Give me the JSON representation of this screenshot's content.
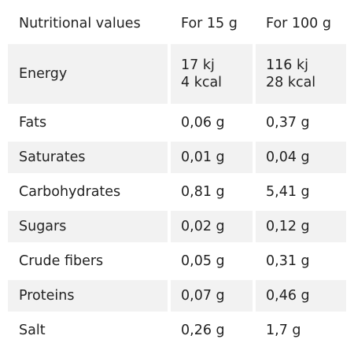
{
  "table": {
    "header": {
      "label": "Nutritional values",
      "col_15g": "For 15 g",
      "col_100g": "For 100 g"
    },
    "energy": {
      "label": "Energy",
      "kj_15g": "17 kj",
      "kcal_15g": "4 kcal",
      "kj_100g": "116 kj",
      "kcal_100g": "28 kcal"
    },
    "rows": [
      {
        "label": "Fats",
        "v15": "0,06 g",
        "v100": "0,37 g"
      },
      {
        "label": "Saturates",
        "v15": "0,01 g",
        "v100": "0,04 g"
      },
      {
        "label": "Carbohydrates",
        "v15": "0,81 g",
        "v100": "5,41 g"
      },
      {
        "label": "Sugars",
        "v15": "0,02 g",
        "v100": "0,12 g"
      },
      {
        "label": "Crude fibers",
        "v15": "0,05 g",
        "v100": "0,31 g"
      },
      {
        "label": "Proteins",
        "v15": "0,07 g",
        "v100": "0,46 g"
      },
      {
        "label": "Salt",
        "v15": "0,26 g",
        "v100": "1,7 g"
      }
    ],
    "shade_color": "#f2f2f2"
  }
}
